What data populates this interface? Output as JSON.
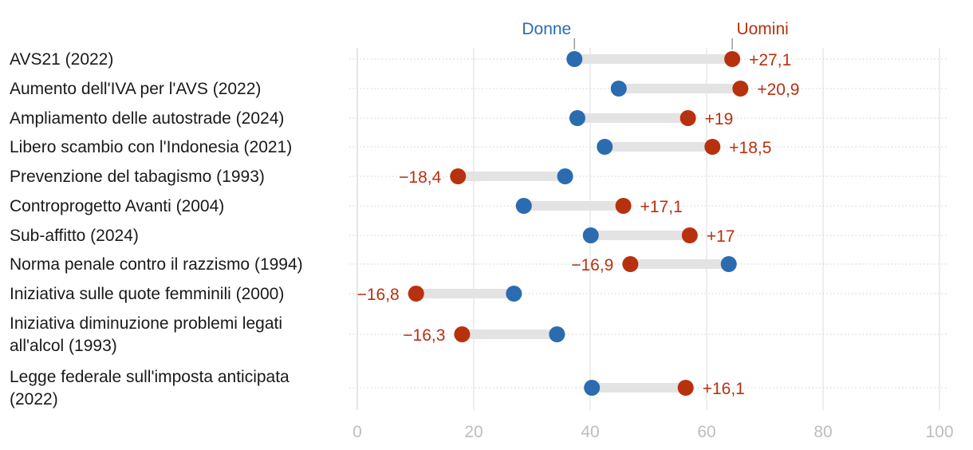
{
  "chart_data": {
    "type": "dumbbell",
    "title": "",
    "xlabel": "",
    "ylabel": "",
    "xlim": [
      0,
      100
    ],
    "xticks": [
      0,
      20,
      40,
      60,
      80,
      100
    ],
    "xtick_labels": [
      "0",
      "20",
      "40",
      "60",
      "80",
      "100"
    ],
    "legend": [
      {
        "name": "Donne",
        "color": "#2b6cb0"
      },
      {
        "name": "Uomini",
        "color": "#b8310f"
      }
    ],
    "colors": {
      "donne": "#2b6cb0",
      "uomini": "#b8310f",
      "connector": "#e3e3e3",
      "grid": "#dddddd"
    },
    "rows": [
      {
        "label": [
          "AVS21 (2022)"
        ],
        "donne": 37.3,
        "uomini": 64.4,
        "diff": "+27,1"
      },
      {
        "label": [
          "Aumento dell'IVA per l'AVS (2022)"
        ],
        "donne": 44.9,
        "uomini": 65.8,
        "diff": "+20,9"
      },
      {
        "label": [
          "Ampliamento delle autostrade (2024)"
        ],
        "donne": 37.8,
        "uomini": 56.8,
        "diff": "+19"
      },
      {
        "label": [
          "Libero scambio con l'Indonesia (2021)"
        ],
        "donne": 42.5,
        "uomini": 61.0,
        "diff": "+18,5"
      },
      {
        "label": [
          "Prevenzione del tabagismo (1993)"
        ],
        "donne": 35.7,
        "uomini": 17.3,
        "diff": "−18,4"
      },
      {
        "label": [
          "Controprogetto Avanti (2004)"
        ],
        "donne": 28.6,
        "uomini": 45.7,
        "diff": "+17,1"
      },
      {
        "label": [
          "Sub-affitto (2024)"
        ],
        "donne": 40.1,
        "uomini": 57.1,
        "diff": "+17"
      },
      {
        "label": [
          "Norma penale contro il razzismo (1994)"
        ],
        "donne": 63.8,
        "uomini": 46.9,
        "diff": "−16,9"
      },
      {
        "label": [
          "Iniziativa sulle quote femminili (2000)"
        ],
        "donne": 26.9,
        "uomini": 10.1,
        "diff": "−16,8"
      },
      {
        "label": [
          "Iniziativa diminuzione problemi legati",
          "all'alcol (1993)"
        ],
        "donne": 34.3,
        "uomini": 18.0,
        "diff": "−16,3"
      },
      {
        "label": [
          "Legge federale sull'imposta anticipata",
          "(2022)"
        ],
        "donne": 40.3,
        "uomini": 56.4,
        "diff": "+16,1"
      }
    ]
  }
}
